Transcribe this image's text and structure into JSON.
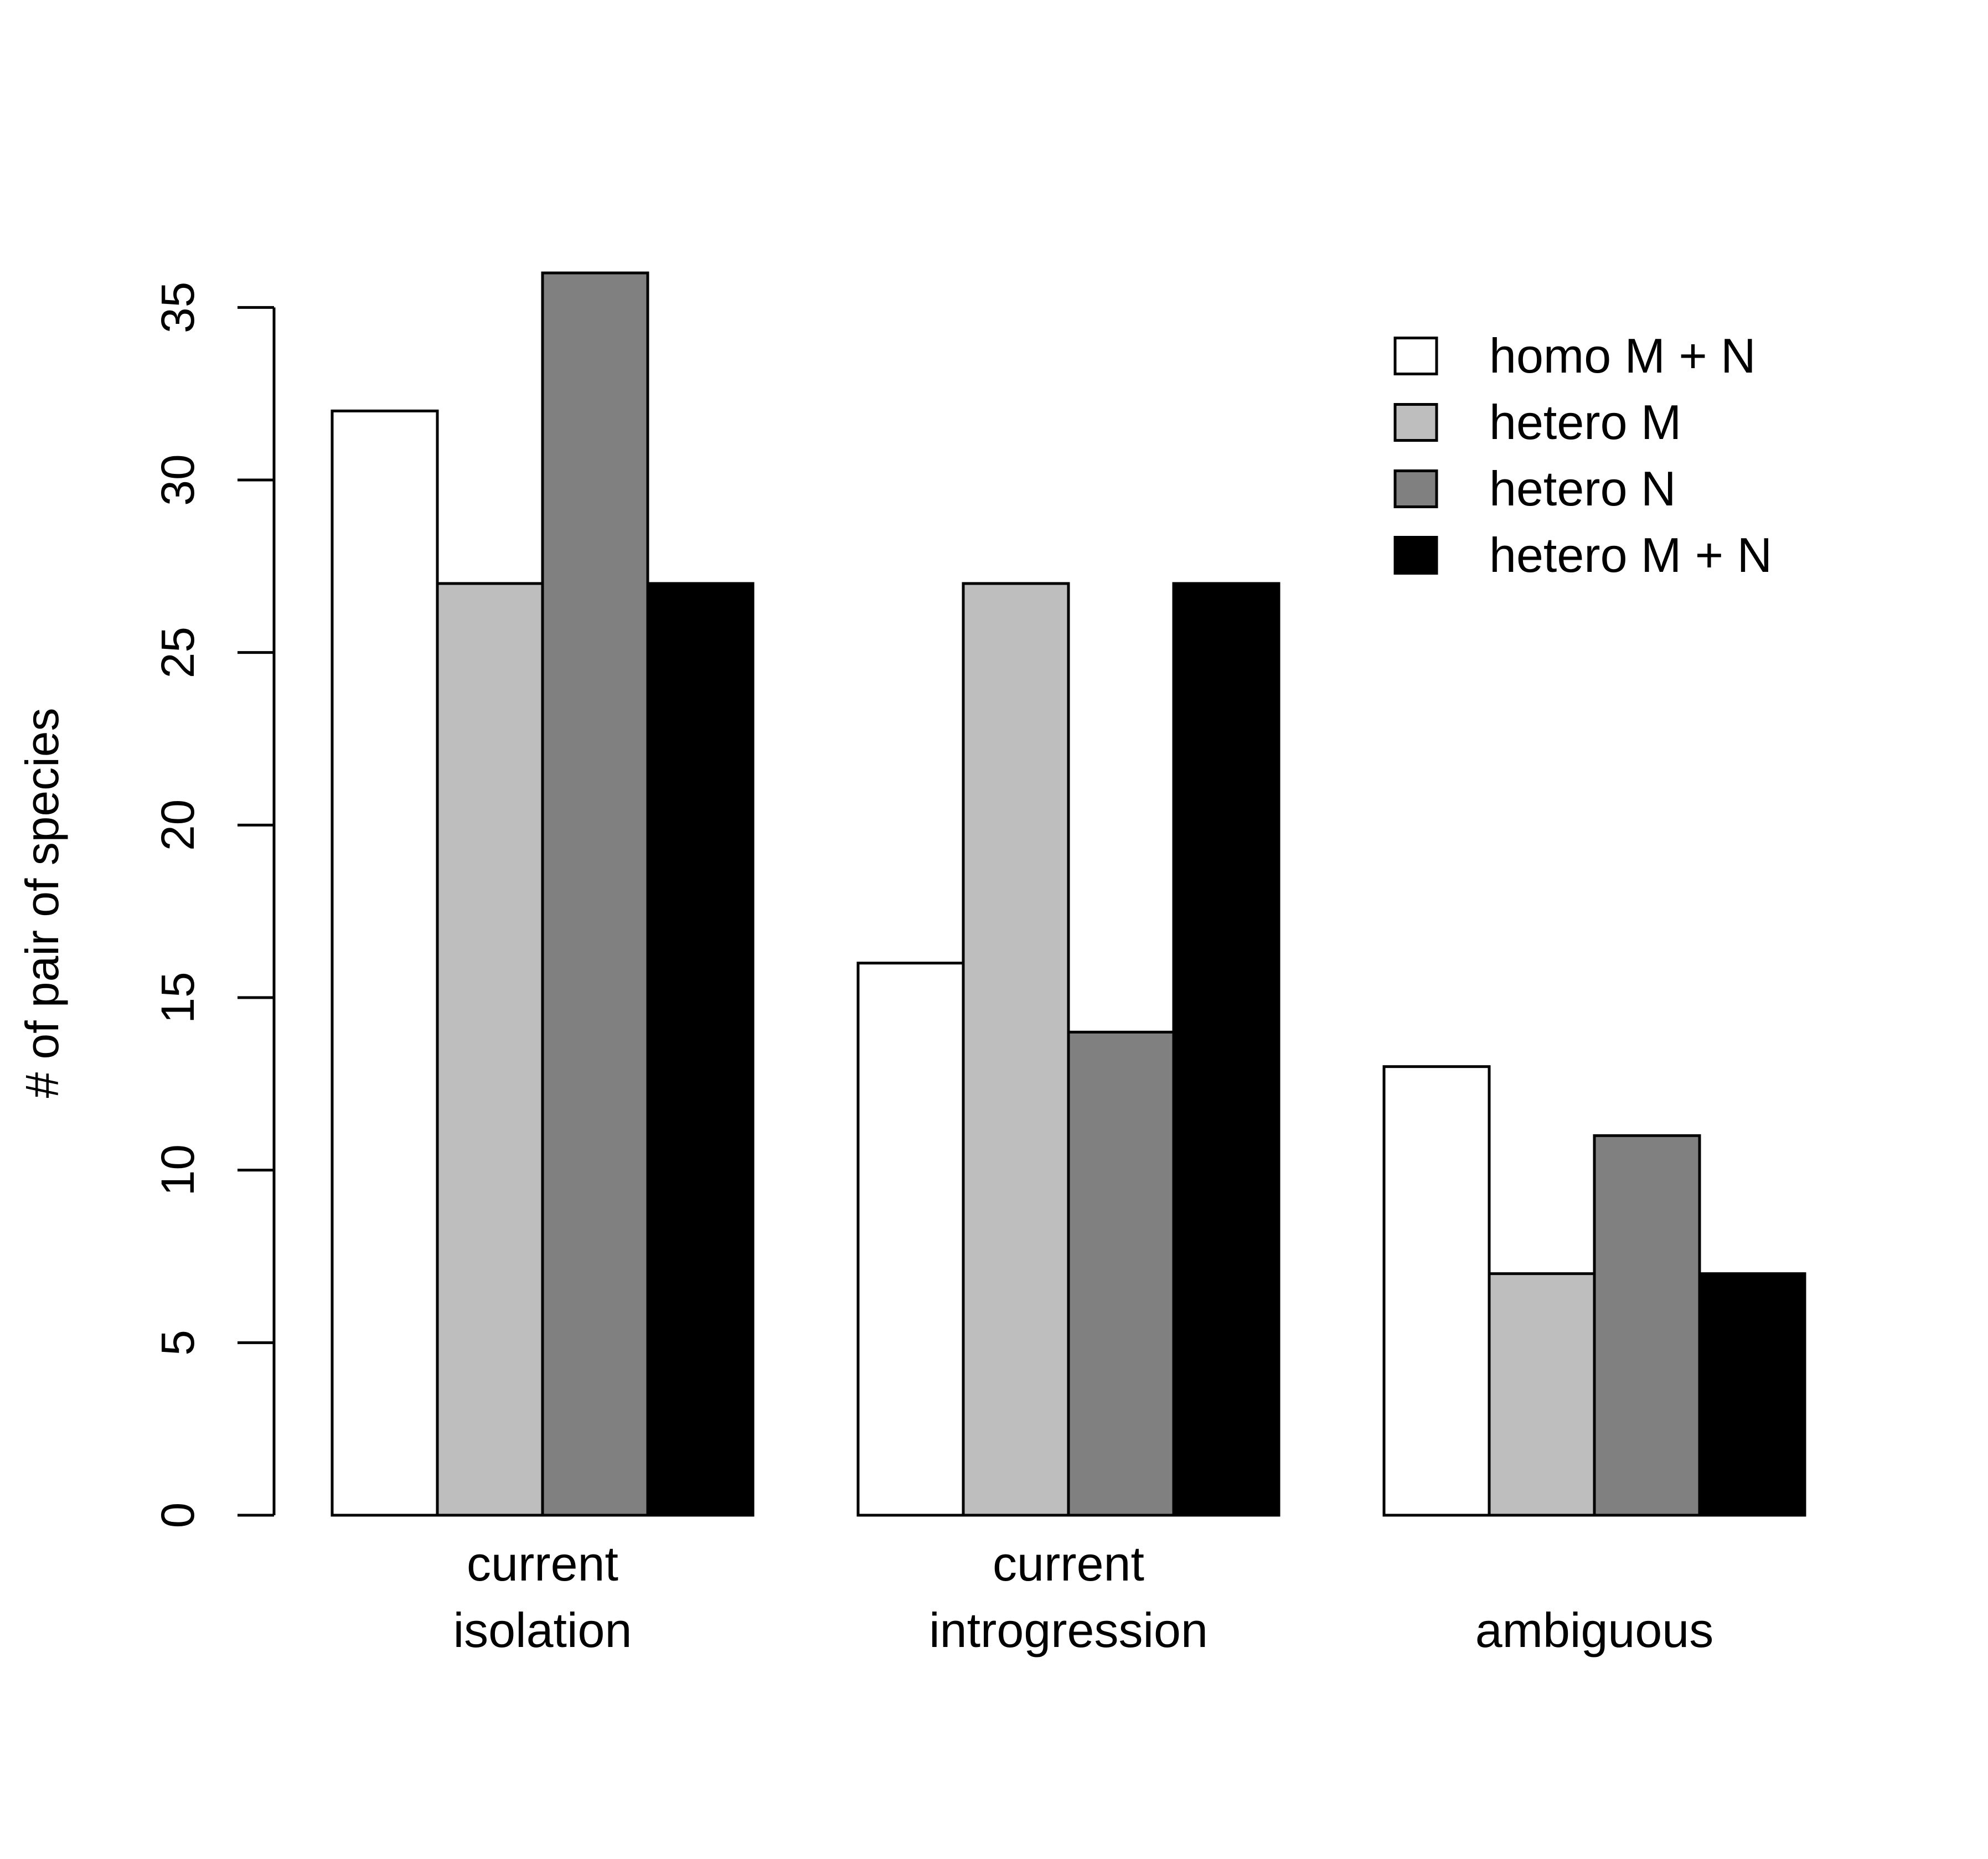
{
  "chart_data": {
    "type": "bar",
    "title": "",
    "xlabel": "",
    "ylabel": "# of pair of species",
    "ylim": [
      0,
      36
    ],
    "yticks": [
      0,
      5,
      10,
      15,
      20,
      25,
      30,
      35
    ],
    "grid": false,
    "legend_position": "top-right",
    "categories": [
      [
        "current",
        "isolation"
      ],
      [
        "current",
        "introgression"
      ],
      [
        "ambiguous"
      ]
    ],
    "series": [
      {
        "name": "homo M + N",
        "color": "#ffffff",
        "values": [
          32,
          16,
          13
        ]
      },
      {
        "name": "hetero M",
        "color": "#bebebe",
        "values": [
          27,
          27,
          7
        ]
      },
      {
        "name": "hetero N",
        "color": "#808080",
        "values": [
          36,
          14,
          11
        ]
      },
      {
        "name": "hetero M + N",
        "color": "#000000",
        "values": [
          27,
          27,
          7
        ]
      }
    ]
  }
}
